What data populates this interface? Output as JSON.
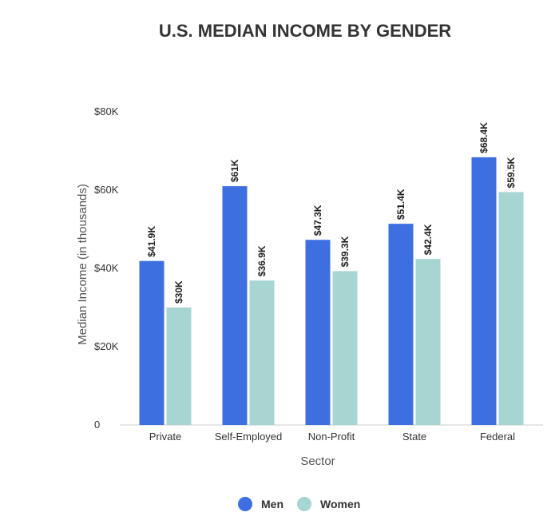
{
  "chart_data": {
    "type": "bar",
    "title": "U.S. MEDIAN INCOME BY GENDER",
    "xlabel": "Sector",
    "ylabel": "Median Income (in thousands)",
    "categories": [
      "Private",
      "Self-Employed",
      "Non-Profit",
      "State",
      "Federal"
    ],
    "series": [
      {
        "name": "Men",
        "color": "#3e6fe0",
        "values": [
          41.9,
          61,
          47.3,
          51.4,
          68.4
        ],
        "labels": [
          "$41.9K",
          "$61K",
          "$47.3K",
          "$51.4K",
          "$68.4K"
        ]
      },
      {
        "name": "Women",
        "color": "#a7d5d2",
        "values": [
          30,
          36.9,
          39.3,
          42.4,
          59.5
        ],
        "labels": [
          "$30K",
          "$36.9K",
          "$39.3K",
          "$42.4K",
          "$59.5K"
        ]
      }
    ],
    "ylim": [
      0,
      80
    ],
    "yticks": [
      0,
      20,
      40,
      60,
      80
    ],
    "ytick_labels": [
      "0",
      "$20K",
      "$40K",
      "$60K",
      "$80K"
    ],
    "grid": false,
    "legend": "bottom-center"
  }
}
